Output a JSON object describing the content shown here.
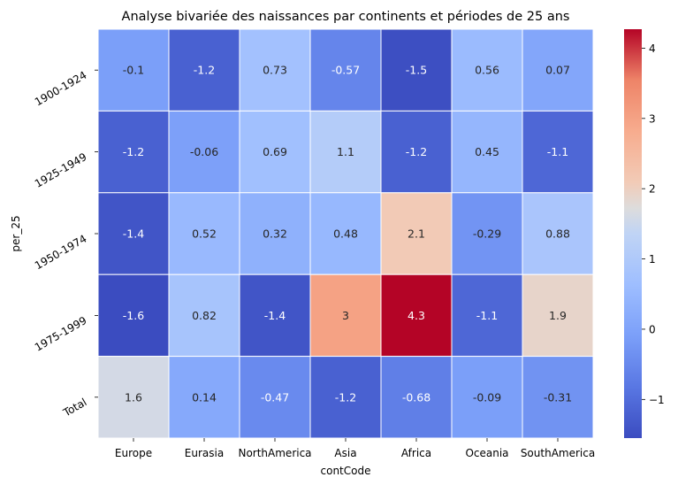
{
  "chart_data": {
    "type": "heatmap",
    "title": "Analyse bivariée des naissances par continents et périodes de 25 ans",
    "xlabel": "contCode",
    "ylabel": "per_25",
    "x_categories": [
      "Europe",
      "Eurasia",
      "NorthAmerica",
      "Asia",
      "Africa",
      "Oceania",
      "SouthAmerica"
    ],
    "y_categories": [
      "1900-1924",
      "1925-1949",
      "1950-1974",
      "1975-1999",
      "Total"
    ],
    "values": [
      [
        -0.1,
        -1.2,
        0.73,
        -0.57,
        -1.5,
        0.56,
        0.07
      ],
      [
        -1.2,
        -0.06,
        0.69,
        1.1,
        -1.2,
        0.45,
        -1.1
      ],
      [
        -1.4,
        0.52,
        0.32,
        0.48,
        2.1,
        -0.29,
        0.88
      ],
      [
        -1.6,
        0.82,
        -1.4,
        3,
        4.3,
        -1.1,
        1.9
      ],
      [
        1.6,
        0.14,
        -0.47,
        -1.2,
        -0.68,
        -0.09,
        -0.31
      ]
    ],
    "colormap": "coolwarm",
    "vmin": -1.55,
    "vmax": 4.27,
    "colorbar_ticks": [
      "−1",
      "0",
      "1",
      "2",
      "3",
      "4"
    ],
    "colorbar_tick_values": [
      -1,
      0,
      1,
      2,
      3,
      4
    ]
  }
}
